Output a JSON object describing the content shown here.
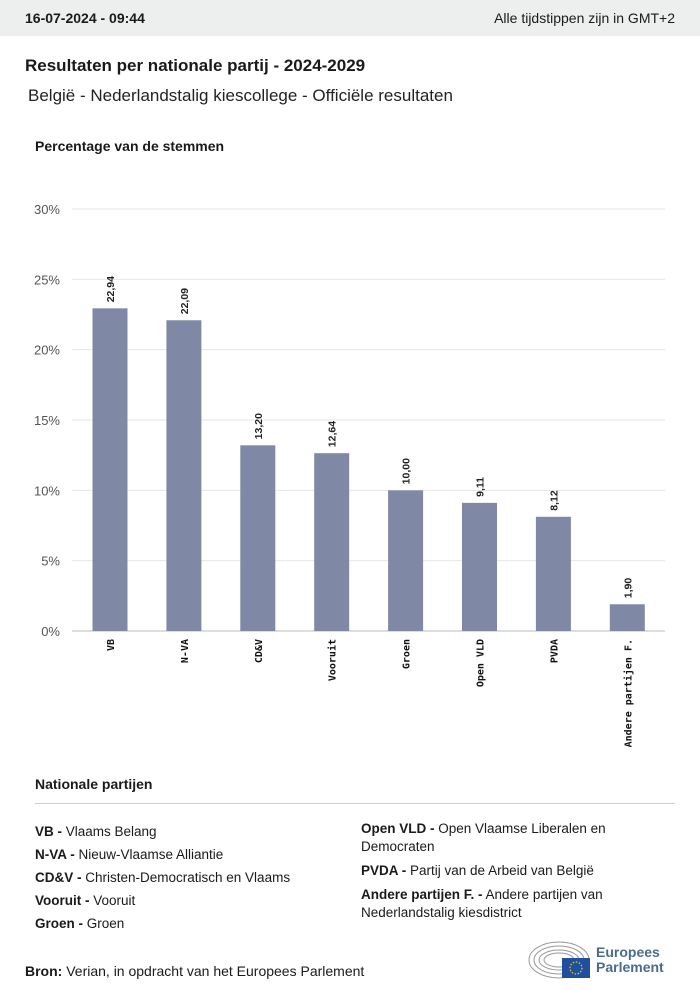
{
  "header": {
    "datetime": "16-07-2024 - 09:44",
    "timezone_note": "Alle tijdstippen zijn in GMT+2"
  },
  "title": "Resultaten per nationale partij - 2024-2029",
  "subtitle": "België - Nederlandstalig kiescollege - Officiële resultaten",
  "chart_data": {
    "type": "bar",
    "ylabel": "Percentage van de stemmen",
    "ylim": [
      0,
      30
    ],
    "yticks": [
      "0%",
      "5%",
      "10%",
      "15%",
      "20%",
      "25%",
      "30%"
    ],
    "grid": true,
    "bar_color": "#7f89a6",
    "categories": [
      "VB",
      "N-VA",
      "CD&V",
      "Vooruit",
      "Groen",
      "Open VLD",
      "PVDA",
      "Andere partijen F."
    ],
    "values": [
      22.94,
      22.09,
      13.2,
      12.64,
      10.0,
      9.11,
      8.12,
      1.9
    ],
    "data_labels": [
      "22,94",
      "22,09",
      "13,20",
      "12,64",
      "10,00",
      "9,11",
      "8,12",
      "1,90"
    ]
  },
  "legend": {
    "title": "Nationale partijen",
    "items": [
      {
        "abbr": "VB -",
        "name": "Vlaams Belang"
      },
      {
        "abbr": "N-VA -",
        "name": "Nieuw-Vlaamse Alliantie"
      },
      {
        "abbr": "CD&V -",
        "name": "Christen-Democratisch en Vlaams"
      },
      {
        "abbr": "Vooruit -",
        "name": "Vooruit"
      },
      {
        "abbr": "Groen -",
        "name": "Groen"
      },
      {
        "abbr": "Open VLD -",
        "name": "Open Vlaamse Liberalen en Democraten"
      },
      {
        "abbr": "PVDA -",
        "name": "Partij van de Arbeid van België"
      },
      {
        "abbr": "Andere partijen F. -",
        "name": "Andere partijen van Nederlandstalig kiesdistrict"
      }
    ]
  },
  "source": {
    "label": "Bron:",
    "text": "Verian, in opdracht van het Europees Parlement"
  },
  "logo": {
    "line1": "Europees",
    "line2": "Parlement"
  }
}
